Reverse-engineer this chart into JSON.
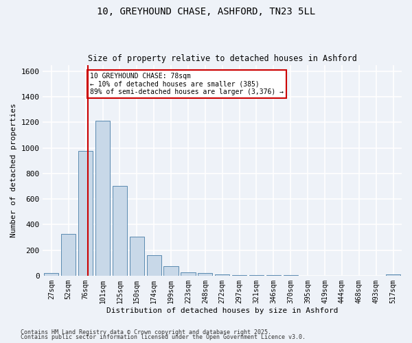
{
  "title_line1": "10, GREYHOUND CHASE, ASHFORD, TN23 5LL",
  "title_line2": "Size of property relative to detached houses in Ashford",
  "xlabel": "Distribution of detached houses by size in Ashford",
  "ylabel": "Number of detached properties",
  "bar_labels": [
    "27sqm",
    "52sqm",
    "76sqm",
    "101sqm",
    "125sqm",
    "150sqm",
    "174sqm",
    "199sqm",
    "223sqm",
    "248sqm",
    "272sqm",
    "297sqm",
    "321sqm",
    "346sqm",
    "370sqm",
    "395sqm",
    "419sqm",
    "444sqm",
    "468sqm",
    "493sqm",
    "517sqm"
  ],
  "bar_values": [
    22,
    325,
    975,
    1210,
    700,
    305,
    158,
    75,
    28,
    18,
    10,
    4,
    4,
    2,
    2,
    1,
    0,
    0,
    0,
    0,
    10
  ],
  "bar_color": "#c8d8e8",
  "bar_edgecolor": "#5a8ab0",
  "background_color": "#eef2f8",
  "grid_color": "#ffffff",
  "vline_x": 2,
  "vline_color": "#cc0000",
  "annotation_text": "10 GREYHOUND CHASE: 78sqm\n← 10% of detached houses are smaller (385)\n89% of semi-detached houses are larger (3,376) →",
  "annotation_box_edgecolor": "#cc0000",
  "annotation_box_facecolor": "#ffffff",
  "ylim": [
    0,
    1650
  ],
  "footnote1": "Contains HM Land Registry data © Crown copyright and database right 2025.",
  "footnote2": "Contains public sector information licensed under the Open Government Licence v3.0."
}
